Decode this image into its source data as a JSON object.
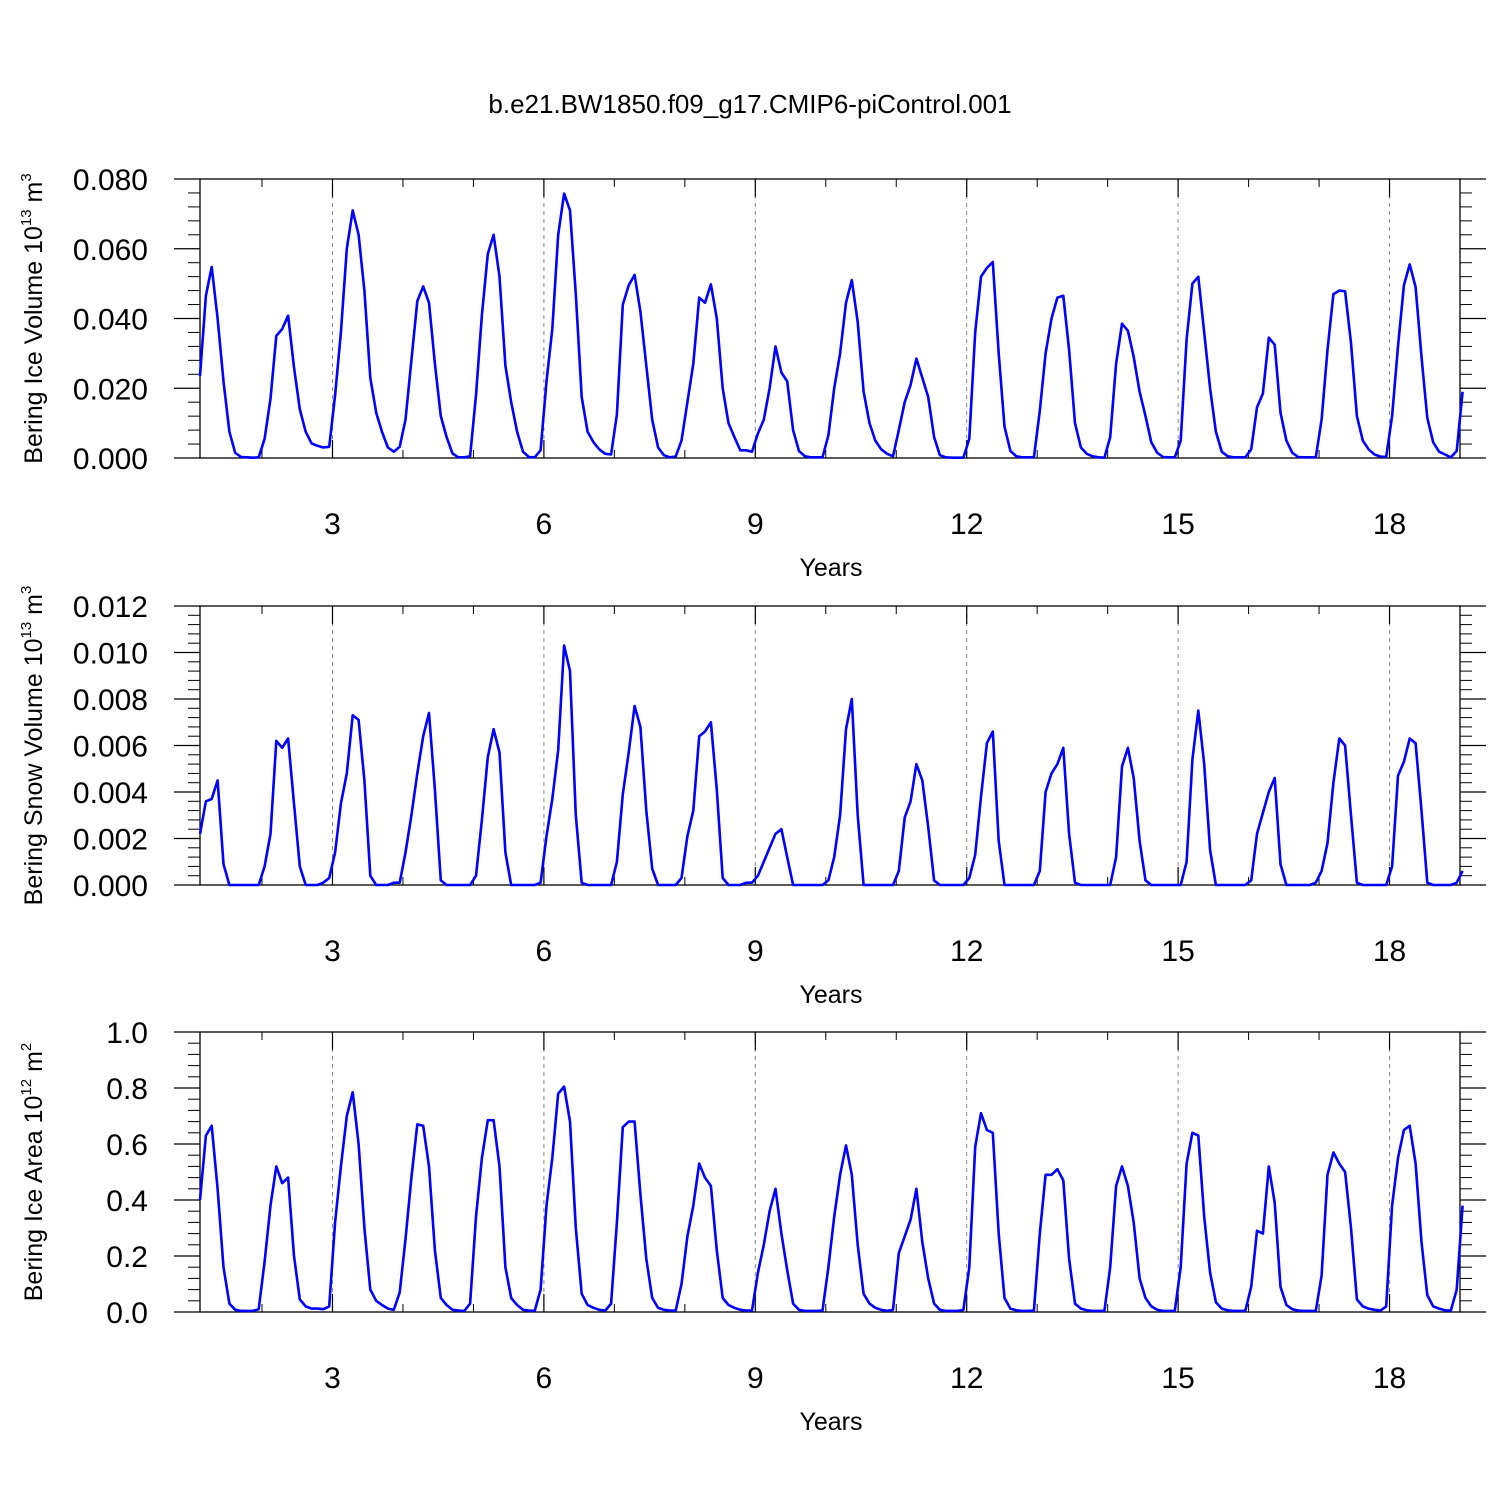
{
  "title": "b.e21.BW1850.f09_g17.CMIP6-piControl.001",
  "colors": {
    "line": "#0000ff",
    "axis": "#000000",
    "grid": "#888888"
  },
  "chart_data": [
    {
      "type": "line",
      "ylabel": {
        "main": "Bering Ice Volume 10",
        "exp": "13",
        "unit": " m",
        "unit_exp": "3"
      },
      "xlabel": "Years",
      "ylim": [
        0,
        0.08
      ],
      "yticks": [
        0,
        0.02,
        0.04,
        0.06,
        0.08
      ],
      "ytick_labels": [
        "0.000",
        "0.020",
        "0.040",
        "0.060",
        "0.080"
      ],
      "xlim": [
        1.12,
        19.0
      ],
      "xticks": [
        3,
        6,
        9,
        12,
        15,
        18
      ],
      "xtick_labels": [
        "3",
        "6",
        "9",
        "12",
        "15",
        "18"
      ],
      "grid": "dashed vertical at major x ticks",
      "series": [
        {
          "values": [
            0.0235,
            0.0465,
            0.0548,
            0.04,
            0.022,
            0.0075,
            0.0015,
            0.0003,
            0.0002,
            0.0001,
            0.0002,
            0.0055,
            0.017,
            0.035,
            0.037,
            0.0408,
            0.026,
            0.014,
            0.0075,
            0.0042,
            0.0035,
            0.003,
            0.0032,
            0.018,
            0.036,
            0.06,
            0.071,
            0.064,
            0.048,
            0.023,
            0.013,
            0.0075,
            0.003,
            0.0018,
            0.0032,
            0.011,
            0.028,
            0.045,
            0.0492,
            0.0445,
            0.027,
            0.012,
            0.006,
            0.0013,
            0.0002,
            0.0002,
            0.0005,
            0.018,
            0.041,
            0.0585,
            0.064,
            0.052,
            0.0265,
            0.016,
            0.0075,
            0.0018,
            0.0003,
            0.0002,
            0.0022,
            0.022,
            0.037,
            0.064,
            0.0758,
            0.071,
            0.047,
            0.0175,
            0.0075,
            0.0045,
            0.0025,
            0.0012,
            0.001,
            0.0125,
            0.044,
            0.0495,
            0.0525,
            0.042,
            0.0265,
            0.011,
            0.003,
            0.0008,
            0.0002,
            0.0004,
            0.005,
            0.016,
            0.027,
            0.046,
            0.0445,
            0.0498,
            0.04,
            0.02,
            0.01,
            0.006,
            0.0022,
            0.0022,
            0.0018,
            0.007,
            0.011,
            0.02,
            0.032,
            0.0245,
            0.022,
            0.008,
            0.002,
            0.0005,
            0.0002,
            0.0002,
            0.0002,
            0.0065,
            0.02,
            0.03,
            0.0445,
            0.051,
            0.039,
            0.019,
            0.01,
            0.005,
            0.0025,
            0.0012,
            0.0005,
            0.008,
            0.016,
            0.021,
            0.0285,
            0.023,
            0.0175,
            0.006,
            0.0008,
            0.0002,
            0.0001,
            0.0001,
            0.0001,
            0.0055,
            0.036,
            0.052,
            0.0545,
            0.0562,
            0.03,
            0.009,
            0.002,
            0.0005,
            0.0002,
            0.0002,
            0.0002,
            0.0135,
            0.03,
            0.04,
            0.046,
            0.0465,
            0.031,
            0.01,
            0.003,
            0.0012,
            0.0005,
            0.0002,
            0.0001,
            0.006,
            0.027,
            0.0385,
            0.0365,
            0.029,
            0.019,
            0.012,
            0.0045,
            0.0015,
            0.0003,
            0.0002,
            0.0002,
            0.005,
            0.034,
            0.05,
            0.052,
            0.036,
            0.02,
            0.0075,
            0.0018,
            0.0005,
            0.0002,
            0.0002,
            0.0002,
            0.0025,
            0.0145,
            0.0185,
            0.0345,
            0.0325,
            0.013,
            0.005,
            0.0015,
            0.0003,
            0.0002,
            0.0002,
            0.0002,
            0.011,
            0.031,
            0.047,
            0.048,
            0.0478,
            0.033,
            0.012,
            0.005,
            0.0025,
            0.001,
            0.0004,
            0.0003,
            0.012,
            0.032,
            0.0495,
            0.0555,
            0.049,
            0.029,
            0.0115,
            0.0045,
            0.0018,
            0.001,
            0.0002,
            0.002,
            0.019
          ]
        }
      ]
    },
    {
      "type": "line",
      "ylabel": {
        "main": "Bering Snow Volume 10",
        "exp": "13",
        "unit": " m",
        "unit_exp": "3"
      },
      "xlabel": "Years",
      "ylim": [
        0,
        0.012
      ],
      "yticks": [
        0,
        0.002,
        0.004,
        0.006,
        0.008,
        0.01,
        0.012
      ],
      "ytick_labels": [
        "0.000",
        "0.002",
        "0.004",
        "0.006",
        "0.008",
        "0.010",
        "0.012"
      ],
      "xlim": [
        1.12,
        19.0
      ],
      "xticks": [
        3,
        6,
        9,
        12,
        15,
        18
      ],
      "xtick_labels": [
        "3",
        "6",
        "9",
        "12",
        "15",
        "18"
      ],
      "grid": "dashed vertical at major x ticks",
      "series": [
        {
          "values": [
            0.0022,
            0.0036,
            0.0037,
            0.0045,
            0.0009,
            0.0,
            0.0,
            0.0,
            0.0,
            0.0,
            0.0,
            0.0008,
            0.0022,
            0.0062,
            0.0059,
            0.0063,
            0.0035,
            0.0008,
            0.0,
            0.0,
            0.0,
            0.0001,
            0.0003,
            0.0014,
            0.0035,
            0.0048,
            0.0073,
            0.0071,
            0.0045,
            0.0004,
            0.0,
            0.0,
            0.0,
            0.0001,
            0.0001,
            0.0014,
            0.003,
            0.0048,
            0.0064,
            0.0074,
            0.0041,
            0.0002,
            0.0,
            0.0,
            0.0,
            0.0,
            0.0,
            0.0004,
            0.0028,
            0.0055,
            0.0067,
            0.0057,
            0.0014,
            0.0,
            0.0,
            0.0,
            0.0,
            0.0,
            0.0001,
            0.0021,
            0.0037,
            0.0058,
            0.0103,
            0.0092,
            0.003,
            0.0001,
            0.0,
            0.0,
            0.0,
            0.0,
            0.0,
            0.001,
            0.0039,
            0.0057,
            0.0077,
            0.0068,
            0.0032,
            0.0007,
            0.0,
            0.0,
            0.0,
            0.0,
            0.0003,
            0.0021,
            0.0032,
            0.0064,
            0.0066,
            0.007,
            0.0041,
            0.0003,
            0.0,
            0.0,
            0.0,
            0.0001,
            0.0001,
            0.0004,
            0.001,
            0.0016,
            0.0022,
            0.0024,
            0.0012,
            0.0,
            0.0,
            0.0,
            0.0,
            0.0,
            0.0,
            0.0002,
            0.0012,
            0.003,
            0.0067,
            0.008,
            0.003,
            0.0,
            0.0,
            0.0,
            0.0,
            0.0,
            0.0,
            0.0006,
            0.0029,
            0.0036,
            0.0052,
            0.0045,
            0.0025,
            0.0002,
            0.0,
            0.0,
            0.0,
            0.0,
            0.0,
            0.0003,
            0.0013,
            0.0038,
            0.0061,
            0.0066,
            0.0019,
            0.0,
            0.0,
            0.0,
            0.0,
            0.0,
            0.0,
            0.0006,
            0.004,
            0.0048,
            0.0052,
            0.0059,
            0.0022,
            0.0001,
            0.0,
            0.0,
            0.0,
            0.0,
            0.0,
            0.0,
            0.0012,
            0.0051,
            0.0059,
            0.0046,
            0.0019,
            0.0002,
            0.0,
            0.0,
            0.0,
            0.0,
            0.0,
            0.0,
            0.001,
            0.0054,
            0.0075,
            0.0052,
            0.0015,
            0.0,
            0.0,
            0.0,
            0.0,
            0.0,
            0.0,
            0.0002,
            0.0022,
            0.0031,
            0.004,
            0.0046,
            0.0009,
            0.0,
            0.0,
            0.0,
            0.0,
            0.0,
            0.0001,
            0.0006,
            0.0018,
            0.0044,
            0.0063,
            0.006,
            0.003,
            0.0001,
            0.0,
            0.0,
            0.0,
            0.0,
            0.0,
            0.0008,
            0.0047,
            0.0053,
            0.0063,
            0.0061,
            0.0032,
            0.0001,
            0.0,
            0.0,
            0.0,
            0.0,
            0.0001,
            0.0006
          ]
        }
      ]
    },
    {
      "type": "line",
      "ylabel": {
        "main": "Bering Ice Area 10",
        "exp": "12",
        "unit": " m",
        "unit_exp": "2"
      },
      "xlabel": "Years",
      "ylim": [
        0,
        1.0
      ],
      "yticks": [
        0,
        0.2,
        0.4,
        0.6,
        0.8,
        1.0
      ],
      "ytick_labels": [
        "0.0",
        "0.2",
        "0.4",
        "0.6",
        "0.8",
        "1.0"
      ],
      "xlim": [
        1.12,
        19.0
      ],
      "xticks": [
        3,
        6,
        9,
        12,
        15,
        18
      ],
      "xtick_labels": [
        "3",
        "6",
        "9",
        "12",
        "15",
        "18"
      ],
      "grid": "dashed vertical at major x ticks",
      "series": [
        {
          "values": [
            0.4,
            0.63,
            0.665,
            0.44,
            0.16,
            0.03,
            0.008,
            0.004,
            0.004,
            0.004,
            0.01,
            0.18,
            0.38,
            0.52,
            0.46,
            0.48,
            0.2,
            0.045,
            0.02,
            0.012,
            0.012,
            0.01,
            0.02,
            0.32,
            0.52,
            0.7,
            0.785,
            0.6,
            0.3,
            0.08,
            0.04,
            0.025,
            0.012,
            0.008,
            0.07,
            0.26,
            0.48,
            0.67,
            0.665,
            0.52,
            0.22,
            0.05,
            0.025,
            0.008,
            0.005,
            0.004,
            0.03,
            0.34,
            0.55,
            0.685,
            0.685,
            0.52,
            0.16,
            0.05,
            0.025,
            0.008,
            0.005,
            0.004,
            0.08,
            0.38,
            0.55,
            0.78,
            0.805,
            0.68,
            0.3,
            0.065,
            0.025,
            0.015,
            0.008,
            0.005,
            0.03,
            0.32,
            0.66,
            0.68,
            0.68,
            0.42,
            0.19,
            0.05,
            0.015,
            0.008,
            0.005,
            0.005,
            0.1,
            0.27,
            0.38,
            0.53,
            0.48,
            0.45,
            0.22,
            0.05,
            0.025,
            0.015,
            0.008,
            0.005,
            0.005,
            0.14,
            0.24,
            0.36,
            0.44,
            0.28,
            0.15,
            0.03,
            0.008,
            0.004,
            0.004,
            0.004,
            0.005,
            0.16,
            0.34,
            0.49,
            0.595,
            0.49,
            0.24,
            0.065,
            0.03,
            0.015,
            0.008,
            0.004,
            0.008,
            0.21,
            0.27,
            0.33,
            0.44,
            0.25,
            0.12,
            0.03,
            0.008,
            0.004,
            0.004,
            0.004,
            0.008,
            0.16,
            0.59,
            0.71,
            0.65,
            0.64,
            0.28,
            0.05,
            0.012,
            0.006,
            0.004,
            0.004,
            0.005,
            0.28,
            0.49,
            0.49,
            0.51,
            0.47,
            0.19,
            0.03,
            0.012,
            0.006,
            0.004,
            0.004,
            0.004,
            0.16,
            0.45,
            0.52,
            0.45,
            0.32,
            0.12,
            0.05,
            0.02,
            0.008,
            0.004,
            0.004,
            0.004,
            0.16,
            0.53,
            0.64,
            0.63,
            0.34,
            0.14,
            0.035,
            0.012,
            0.006,
            0.004,
            0.004,
            0.004,
            0.09,
            0.29,
            0.28,
            0.52,
            0.39,
            0.09,
            0.025,
            0.01,
            0.005,
            0.004,
            0.004,
            0.004,
            0.13,
            0.49,
            0.57,
            0.53,
            0.5,
            0.3,
            0.045,
            0.02,
            0.012,
            0.008,
            0.005,
            0.02,
            0.38,
            0.55,
            0.65,
            0.665,
            0.53,
            0.25,
            0.06,
            0.02,
            0.012,
            0.006,
            0.005,
            0.08,
            0.38
          ]
        }
      ]
    }
  ]
}
